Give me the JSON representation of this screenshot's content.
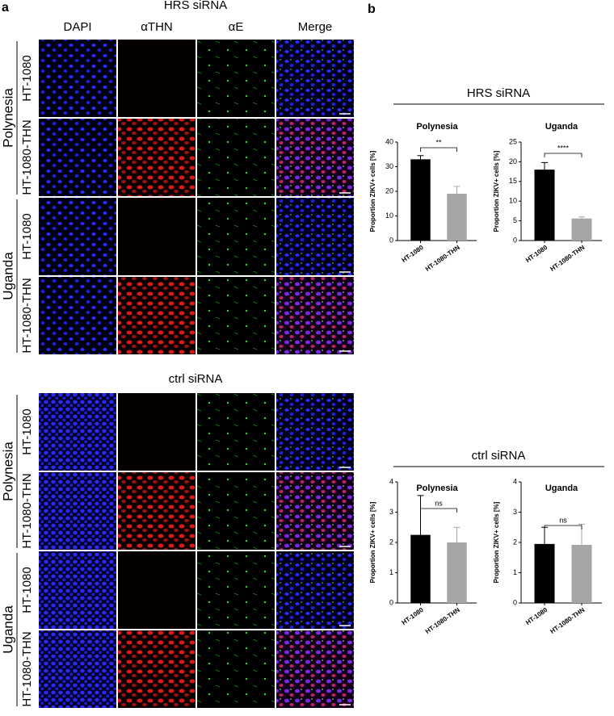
{
  "panel_a": {
    "label": "a",
    "columns": [
      "DAPI",
      "αTHN",
      "αE",
      "Merge"
    ],
    "blocks": [
      {
        "title": "HRS siRNA",
        "strains": [
          {
            "name": "Polynesia",
            "cells": [
              "HT-1080",
              "HT-1080-THN"
            ]
          },
          {
            "name": "Uganda",
            "cells": [
              "HT-1080",
              "HT-1080-THN"
            ]
          }
        ]
      },
      {
        "title": "ctrl siRNA",
        "strains": [
          {
            "name": "Polynesia",
            "cells": [
              "HT-1080",
              "HT-1080-THN"
            ]
          },
          {
            "name": "Uganda",
            "cells": [
              "HT-1080",
              "HT-1080-THN"
            ]
          }
        ]
      }
    ]
  },
  "panel_b": {
    "label": "b",
    "sections": [
      "HRS siRNA",
      "ctrl siRNA"
    ]
  },
  "chart_data": [
    {
      "type": "bar",
      "title": "Polynesia",
      "y_label": "Proportion ZIKV+ cells [%]",
      "categories": [
        "HT-1080",
        "HT-1080-THN"
      ],
      "values": [
        33,
        19
      ],
      "errors": [
        1.5,
        3
      ],
      "colors": [
        "#000000",
        "#a6a6a6"
      ],
      "ylim": [
        0,
        40
      ],
      "yticks": [
        0,
        10,
        20,
        30,
        40
      ],
      "annotation": "**"
    },
    {
      "type": "bar",
      "title": "Uganda",
      "y_label": "Proportion ZIKV+ cells [%]",
      "categories": [
        "HT-1080",
        "HT-1080-THN"
      ],
      "values": [
        18,
        5.6
      ],
      "errors": [
        1.8,
        0.4
      ],
      "colors": [
        "#000000",
        "#a6a6a6"
      ],
      "ylim": [
        0,
        25
      ],
      "yticks": [
        0,
        5,
        10,
        15,
        20,
        25
      ],
      "annotation": "****"
    },
    {
      "type": "bar",
      "title": "Polynesia",
      "y_label": "Proportion ZIKV+ cells [%]",
      "categories": [
        "HT-1080",
        "HT-1080-THN"
      ],
      "values": [
        2.25,
        2.0
      ],
      "errors": [
        1.3,
        0.5
      ],
      "colors": [
        "#000000",
        "#a6a6a6"
      ],
      "ylim": [
        0,
        4
      ],
      "yticks": [
        0,
        1,
        2,
        3,
        4
      ],
      "annotation": "ns"
    },
    {
      "type": "bar",
      "title": "Uganda",
      "y_label": "Proportion ZIKV+ cells [%]",
      "categories": [
        "HT-1080",
        "HT-1080-THN"
      ],
      "values": [
        1.95,
        1.92
      ],
      "errors": [
        0.55,
        0.68
      ],
      "colors": [
        "#000000",
        "#a6a6a6"
      ],
      "ylim": [
        0,
        4
      ],
      "yticks": [
        0,
        1,
        2,
        3,
        4
      ],
      "annotation": "ns"
    }
  ]
}
